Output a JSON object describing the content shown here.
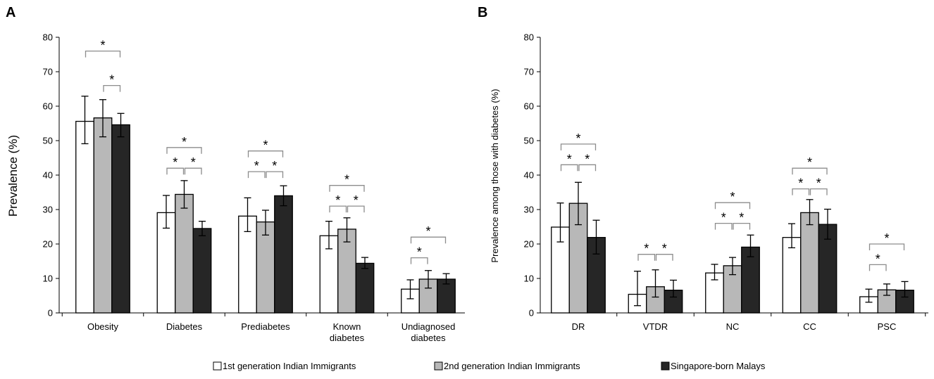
{
  "colors": {
    "first_gen": "#ffffff",
    "second_gen": "#b8b8b8",
    "malays": "#262626",
    "bracket": "#8c8c8c"
  },
  "legend": {
    "items": [
      "1st generation Indian Immigrants",
      "2nd generation Indian Immigrants",
      "Singapore-born Malays"
    ],
    "position": "bottom"
  },
  "chart_data": [
    {
      "panel": "A",
      "type": "bar",
      "ylabel": "Prevalence (%)",
      "ylim": [
        0,
        80
      ],
      "yticks": [
        0,
        10,
        20,
        30,
        40,
        50,
        60,
        70,
        80
      ],
      "categories": [
        [
          "Obesity"
        ],
        [
          "Diabetes"
        ],
        [
          "Prediabetes"
        ],
        [
          "Known",
          "diabetes"
        ],
        [
          "Undiagnosed",
          "diabetes"
        ]
      ],
      "series": [
        {
          "name": "1st generation Indian Immigrants",
          "values": [
            55.6,
            29.1,
            28.1,
            22.4,
            6.9
          ],
          "err_low": [
            49.1,
            24.6,
            23.6,
            18.6,
            4.1
          ],
          "err_high": [
            62.9,
            34.1,
            33.4,
            26.6,
            9.6
          ]
        },
        {
          "name": "2nd generation Indian Immigrants",
          "values": [
            56.6,
            34.4,
            26.4,
            24.3,
            9.8
          ],
          "err_low": [
            51.1,
            30.4,
            22.6,
            20.6,
            7.2
          ],
          "err_high": [
            61.9,
            38.4,
            29.8,
            27.6,
            12.3
          ]
        },
        {
          "name": "Singapore-born Malays",
          "values": [
            54.6,
            24.5,
            34.0,
            14.4,
            9.8
          ],
          "err_low": [
            51.1,
            22.4,
            31.1,
            12.9,
            8.4
          ],
          "err_high": [
            57.9,
            26.6,
            36.9,
            16.1,
            11.4
          ]
        }
      ],
      "significance": [
        {
          "category": 0,
          "pair": [
            0,
            2
          ],
          "level": 76,
          "label": "*"
        },
        {
          "category": 0,
          "pair": [
            1,
            2
          ],
          "level": 66,
          "label": "*"
        },
        {
          "category": 1,
          "pair": [
            0,
            2
          ],
          "level": 48,
          "label": "*"
        },
        {
          "category": 1,
          "pair": [
            0,
            1
          ],
          "level": 42,
          "label": "*"
        },
        {
          "category": 1,
          "pair": [
            1,
            2
          ],
          "level": 42,
          "label": "*"
        },
        {
          "category": 2,
          "pair": [
            0,
            2
          ],
          "level": 47,
          "label": "*"
        },
        {
          "category": 2,
          "pair": [
            0,
            1
          ],
          "level": 41,
          "label": "*"
        },
        {
          "category": 2,
          "pair": [
            1,
            2
          ],
          "level": 41,
          "label": "*"
        },
        {
          "category": 3,
          "pair": [
            0,
            2
          ],
          "level": 37,
          "label": "*"
        },
        {
          "category": 3,
          "pair": [
            0,
            1
          ],
          "level": 31,
          "label": "*"
        },
        {
          "category": 3,
          "pair": [
            1,
            2
          ],
          "level": 31,
          "label": "*"
        },
        {
          "category": 4,
          "pair": [
            0,
            2
          ],
          "level": 22,
          "label": "*"
        },
        {
          "category": 4,
          "pair": [
            0,
            1
          ],
          "level": 16,
          "label": "*"
        }
      ]
    },
    {
      "panel": "B",
      "type": "bar",
      "ylabel": "Prevalence among those with diabetes (%)",
      "ylim": [
        0,
        80
      ],
      "yticks": [
        0,
        10,
        20,
        30,
        40,
        50,
        60,
        70,
        80
      ],
      "categories": [
        [
          "DR"
        ],
        [
          "VTDR"
        ],
        [
          "NC"
        ],
        [
          "CC"
        ],
        [
          "PSC"
        ]
      ],
      "series": [
        {
          "name": "1st generation Indian Immigrants",
          "values": [
            24.9,
            5.4,
            11.6,
            21.9,
            4.7
          ],
          "err_low": [
            20.6,
            2.1,
            9.6,
            18.9,
            3.1
          ],
          "err_high": [
            31.9,
            12.1,
            14.1,
            25.9,
            6.9
          ]
        },
        {
          "name": "2nd generation Indian Immigrants",
          "values": [
            31.8,
            7.6,
            13.7,
            29.1,
            6.7
          ],
          "err_low": [
            25.6,
            4.6,
            11.1,
            25.6,
            5.1
          ],
          "err_high": [
            37.9,
            12.5,
            16.1,
            32.9,
            8.4
          ]
        },
        {
          "name": "Singapore-born Malays",
          "values": [
            21.9,
            6.6,
            19.1,
            25.7,
            6.6
          ],
          "err_low": [
            17.1,
            4.6,
            16.3,
            21.4,
            4.6
          ],
          "err_high": [
            26.9,
            9.5,
            22.6,
            30.1,
            9.1
          ]
        }
      ],
      "significance": [
        {
          "category": 0,
          "pair": [
            0,
            2
          ],
          "level": 49,
          "label": "*"
        },
        {
          "category": 0,
          "pair": [
            0,
            1
          ],
          "level": 43,
          "label": "*"
        },
        {
          "category": 0,
          "pair": [
            1,
            2
          ],
          "level": 43,
          "label": "*"
        },
        {
          "category": 1,
          "pair": [
            0,
            1
          ],
          "level": 17,
          "label": "*"
        },
        {
          "category": 1,
          "pair": [
            1,
            2
          ],
          "level": 17,
          "label": "*"
        },
        {
          "category": 2,
          "pair": [
            0,
            2
          ],
          "level": 32,
          "label": "*"
        },
        {
          "category": 2,
          "pair": [
            0,
            1
          ],
          "level": 26,
          "label": "*"
        },
        {
          "category": 2,
          "pair": [
            1,
            2
          ],
          "level": 26,
          "label": "*"
        },
        {
          "category": 3,
          "pair": [
            0,
            2
          ],
          "level": 42,
          "label": "*"
        },
        {
          "category": 3,
          "pair": [
            0,
            1
          ],
          "level": 36,
          "label": "*"
        },
        {
          "category": 3,
          "pair": [
            1,
            2
          ],
          "level": 36,
          "label": "*"
        },
        {
          "category": 4,
          "pair": [
            0,
            2
          ],
          "level": 20,
          "label": "*"
        },
        {
          "category": 4,
          "pair": [
            0,
            1
          ],
          "level": 14,
          "label": "*"
        }
      ]
    }
  ]
}
